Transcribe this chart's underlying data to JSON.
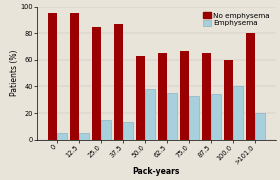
{
  "categories": [
    "0",
    "12.5",
    "25.0",
    "37.5",
    "50.0",
    "62.5",
    "75.0",
    "87.5",
    "100.0",
    ">101.0"
  ],
  "no_emphysema": [
    95,
    95,
    85,
    87,
    63,
    65,
    67,
    65,
    60,
    80
  ],
  "emphysema": [
    5,
    5,
    15,
    13,
    38,
    35,
    33,
    34,
    40,
    20
  ],
  "no_emphysema_color": "#9B0000",
  "emphysema_color": "#A8D0DC",
  "xlabel": "Pack-years",
  "ylabel": "Patients (%)",
  "ylim": [
    0,
    100
  ],
  "yticks": [
    0,
    20,
    40,
    60,
    80,
    100
  ],
  "legend_labels": [
    "No emphysema",
    "Emphysema"
  ],
  "background_color": "#e8e4da",
  "bar_width": 0.44,
  "axis_fontsize": 5.5,
  "tick_fontsize": 4.8,
  "legend_fontsize": 5.2
}
